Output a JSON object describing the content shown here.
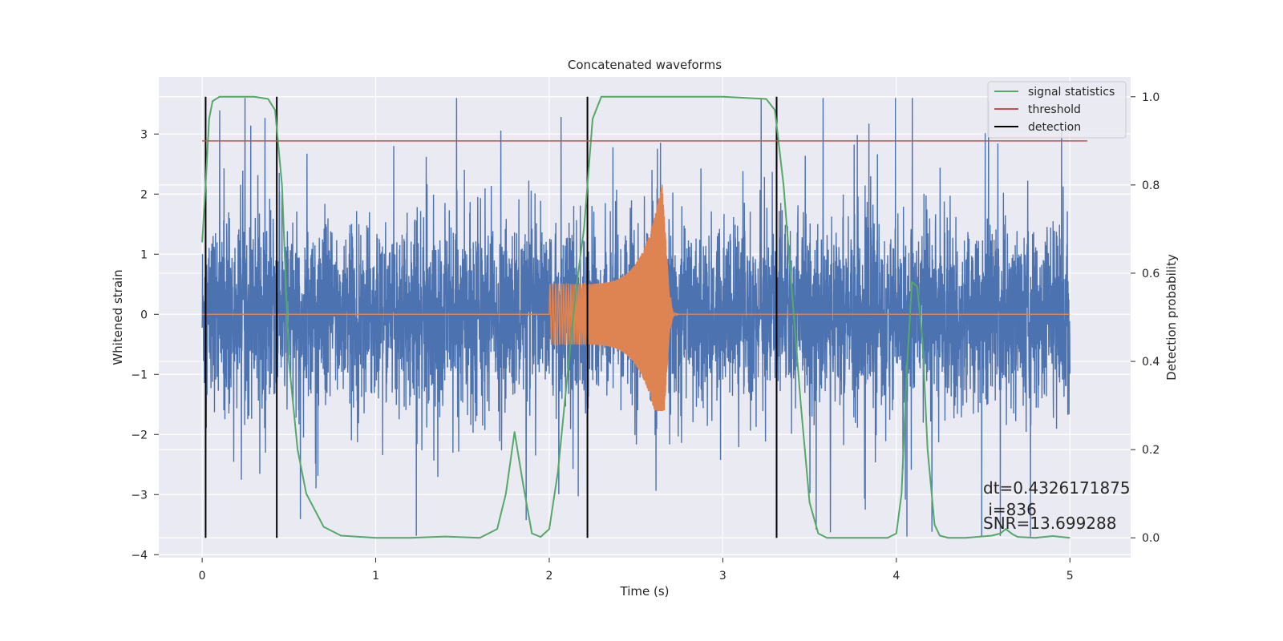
{
  "chart_data": {
    "type": "line",
    "title": "Concatenated waveforms",
    "xlabel": "Time (s)",
    "ylabel": "Whitened strain",
    "ylabel_right": "Detection probability",
    "xlim": [
      -0.25,
      5.35
    ],
    "ylim": [
      -4.05,
      3.95
    ],
    "ylim_right": [
      -0.045,
      1.045
    ],
    "x_ticks": [
      0,
      1,
      2,
      3,
      4,
      5
    ],
    "x_tick_labels": [
      "0",
      "1",
      "2",
      "3",
      "4",
      "5"
    ],
    "y_ticks": [
      -4,
      -3,
      -2,
      -1,
      0,
      1,
      2,
      3
    ],
    "y_tick_labels": [
      "−4",
      "−3",
      "−2",
      "−1",
      "0",
      "1",
      "2",
      "3"
    ],
    "y_right_ticks": [
      0.0,
      0.2,
      0.4,
      0.6,
      0.8,
      1.0
    ],
    "y_right_tick_labels": [
      "0.0",
      "0.2",
      "0.4",
      "0.6",
      "0.8",
      "1.0"
    ],
    "grid": true,
    "legend_position": "top-right",
    "legend": [
      {
        "label": "signal statistics",
        "color": "#55a868"
      },
      {
        "label": "threshold",
        "color": "#c44e52"
      },
      {
        "label": "detection",
        "color": "#000000"
      }
    ],
    "series": [
      {
        "kind": "noise",
        "color": "#4c72b0",
        "axis": "left",
        "x_range": [
          0,
          5
        ],
        "baseline_amplitude": 0.8,
        "spike_range": [
          -3.7,
          3.6
        ]
      },
      {
        "kind": "chirp",
        "color": "#dd8452",
        "axis": "left",
        "x_start": 2.0,
        "x_peak": 2.65,
        "x_end": 2.7,
        "amp_start": 0.5,
        "amp_peak": 2.2,
        "amp_min_peak": -1.6,
        "value_outside": 0
      },
      {
        "name": "signal statistics",
        "color": "#55a868",
        "axis": "right",
        "x": [
          0.0,
          0.02,
          0.04,
          0.06,
          0.1,
          0.2,
          0.3,
          0.38,
          0.42,
          0.46,
          0.5,
          0.55,
          0.6,
          0.7,
          0.8,
          1.0,
          1.2,
          1.4,
          1.6,
          1.7,
          1.75,
          1.8,
          1.85,
          1.9,
          1.95,
          2.0,
          2.05,
          2.1,
          2.15,
          2.2,
          2.25,
          2.3,
          2.4,
          3.0,
          3.25,
          3.3,
          3.35,
          3.4,
          3.45,
          3.5,
          3.55,
          3.6,
          3.8,
          3.95,
          4.0,
          4.03,
          4.06,
          4.09,
          4.12,
          4.15,
          4.18,
          4.22,
          4.25,
          4.3,
          4.4,
          4.55,
          4.6,
          4.63,
          4.67,
          4.7,
          4.8,
          4.9,
          5.0
        ],
        "values": [
          0.67,
          0.8,
          0.95,
          0.99,
          1.0,
          1.0,
          1.0,
          0.995,
          0.97,
          0.8,
          0.4,
          0.2,
          0.1,
          0.025,
          0.005,
          0.0,
          0.0,
          0.003,
          0.0,
          0.02,
          0.1,
          0.24,
          0.12,
          0.01,
          0.002,
          0.02,
          0.15,
          0.35,
          0.55,
          0.7,
          0.95,
          1.0,
          1.0,
          1.0,
          0.995,
          0.97,
          0.8,
          0.55,
          0.3,
          0.08,
          0.01,
          0.0,
          0.0,
          0.0,
          0.01,
          0.1,
          0.38,
          0.58,
          0.57,
          0.45,
          0.2,
          0.03,
          0.005,
          0.0,
          0.0,
          0.005,
          0.01,
          0.02,
          0.008,
          0.002,
          0.0,
          0.004,
          0.0
        ]
      },
      {
        "name": "threshold",
        "color": "#c44e52",
        "axis": "right",
        "x": [
          0.0,
          5.1
        ],
        "values": [
          0.9,
          0.9
        ]
      }
    ],
    "detections": [
      0.02,
      0.43,
      2.22,
      3.31
    ],
    "detection_color": "#000000",
    "annotation_lines": [
      "dt=0.4326171875",
      " i=836",
      "SNR=13.699288"
    ]
  }
}
